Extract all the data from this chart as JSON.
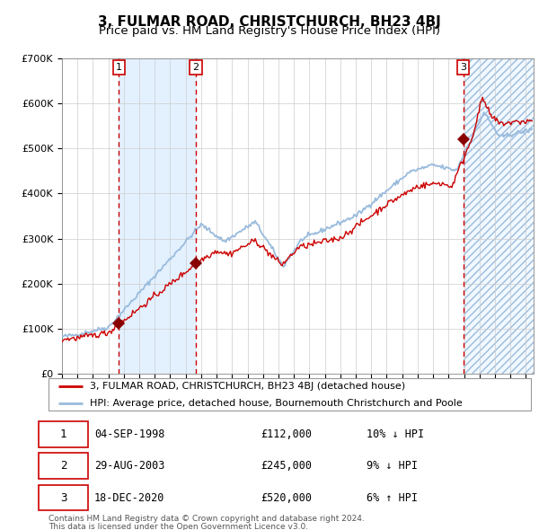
{
  "title": "3, FULMAR ROAD, CHRISTCHURCH, BH23 4BJ",
  "subtitle": "Price paid vs. HM Land Registry's House Price Index (HPI)",
  "sale_label": "3, FULMAR ROAD, CHRISTCHURCH, BH23 4BJ (detached house)",
  "hpi_label": "HPI: Average price, detached house, Bournemouth Christchurch and Poole",
  "footer1": "Contains HM Land Registry data © Crown copyright and database right 2024.",
  "footer2": "This data is licensed under the Open Government Licence v3.0.",
  "transactions": [
    {
      "num": 1,
      "date": "04-SEP-1998",
      "price": 112000,
      "pct": "10%",
      "dir": "↓",
      "year": 1998.67
    },
    {
      "num": 2,
      "date": "29-AUG-2003",
      "price": 245000,
      "pct": "9%",
      "dir": "↓",
      "year": 2003.66
    },
    {
      "num": 3,
      "date": "18-DEC-2020",
      "price": 520000,
      "pct": "6%",
      "dir": "↑",
      "year": 2020.96
    }
  ],
  "ylim": [
    0,
    700000
  ],
  "yticks": [
    0,
    100000,
    200000,
    300000,
    400000,
    500000,
    600000,
    700000
  ],
  "ytick_labels": [
    "£0",
    "£100K",
    "£200K",
    "£300K",
    "£400K",
    "£500K",
    "£600K",
    "£700K"
  ],
  "xlim_start": 1995.0,
  "xlim_end": 2025.5,
  "sale_line_color": "#cc0000",
  "hpi_line_color": "#99bbdd",
  "sale_dot_color": "#880000",
  "vline_color": "#cc0000",
  "shade_color": "#ddeeff",
  "hatch_color": "#99bbdd",
  "grid_color": "#cccccc",
  "bg_color": "#ffffff",
  "title_fontsize": 11,
  "subtitle_fontsize": 9.5
}
